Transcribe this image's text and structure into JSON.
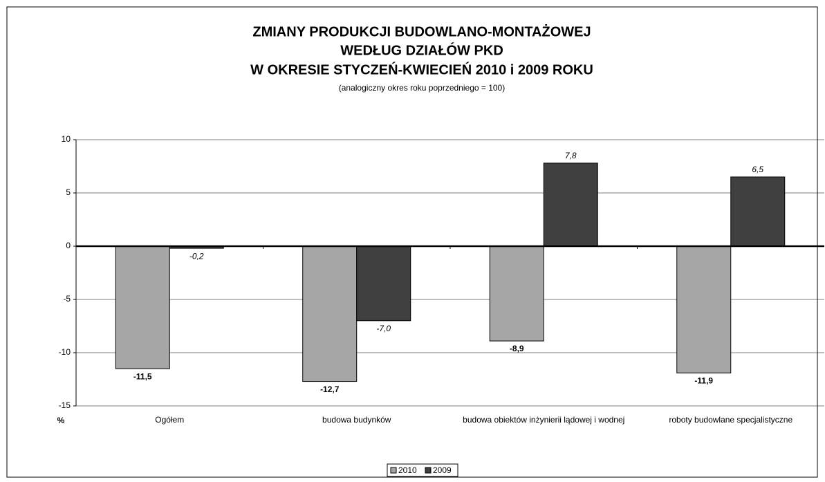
{
  "chart_data": {
    "type": "bar",
    "title": [
      "ZMIANY PRODUKCJI BUDOWLANO-MONTAŻOWEJ",
      "WEDŁUG DZIAŁÓW PKD",
      "W OKRESIE STYCZEŃ-KWIECIEŃ 2010 i 2009 ROKU"
    ],
    "subtitle": "(analogiczny okres roku poprzedniego = 100)",
    "y_label": "%",
    "categories": [
      "Ogółem",
      "budowa budynków",
      "budowa obiektów inżynierii lądowej i wodnej",
      "roboty budowlane specjalistyczne"
    ],
    "series": [
      {
        "name": "2010",
        "color": "#a6a6a6",
        "values": [
          -11.5,
          -12.7,
          -8.9,
          -11.9
        ],
        "value_labels": [
          "-11,5",
          "-12,7",
          "-8,9",
          "-11,9"
        ]
      },
      {
        "name": "2009",
        "color": "#404040",
        "values": [
          -0.2,
          -7.0,
          7.8,
          6.5
        ],
        "value_labels": [
          "-0,2",
          "-7,0",
          "7,8",
          "6,5"
        ]
      }
    ],
    "ylim": [
      -15,
      10
    ],
    "yticks": [
      -15,
      -10,
      -5,
      0,
      5,
      10
    ],
    "grid": true,
    "legend": "bottom"
  }
}
